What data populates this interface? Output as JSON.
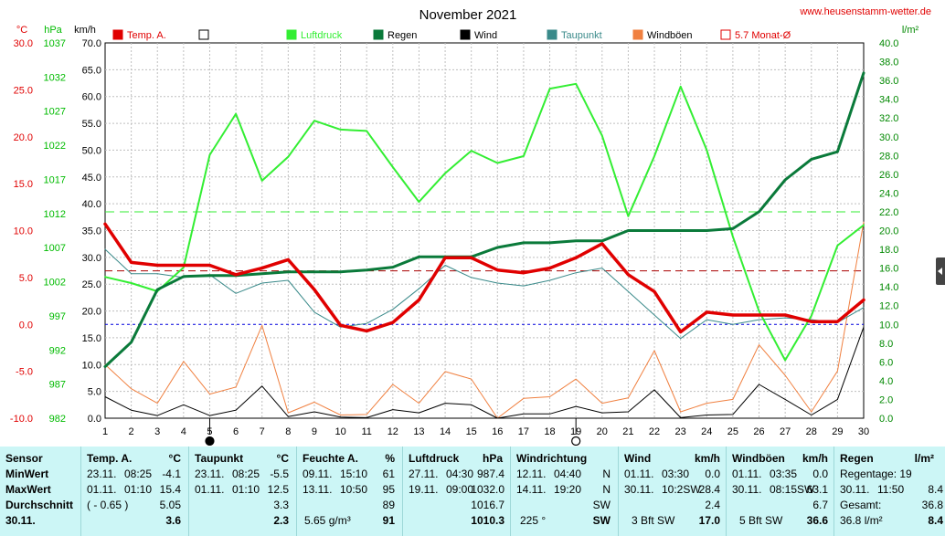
{
  "chart_data": {
    "type": "line",
    "title": "November 2021",
    "website": "www.heusenstamm-wetter.de",
    "axes": {
      "temp": {
        "unit": "°C",
        "min": -10,
        "max": 30,
        "step": 5,
        "color": "#e00000"
      },
      "pressure": {
        "unit": "hPa",
        "min": 982,
        "max": 1037,
        "step": 5,
        "color": "#00bb00"
      },
      "wind": {
        "unit": "km/h",
        "min": 0,
        "max": 70,
        "step": 5,
        "color": "#000000"
      },
      "rain": {
        "unit": "l/m²",
        "min": 0,
        "max": 40,
        "step": 2,
        "color": "#008800"
      }
    },
    "x": [
      1,
      2,
      3,
      4,
      5,
      6,
      7,
      8,
      9,
      10,
      11,
      12,
      13,
      14,
      15,
      16,
      17,
      18,
      19,
      20,
      21,
      22,
      23,
      24,
      25,
      26,
      27,
      28,
      29,
      30
    ],
    "moon_markers": [
      {
        "day": 5,
        "phase": "full"
      },
      {
        "day": 19,
        "phase": "new"
      }
    ],
    "legend": [
      {
        "label": "Temp. A.",
        "color": "#e00000",
        "marker": "filled"
      },
      {
        "label": "",
        "color": "#000000",
        "marker": "open"
      },
      {
        "label": "Luftdruck",
        "color": "#33ee33",
        "marker": "filled"
      },
      {
        "label": "Regen",
        "color": "#0a7a3a",
        "marker": "filled"
      },
      {
        "label": "Wind",
        "color": "#000000",
        "marker": "filled"
      },
      {
        "label": "Taupunkt",
        "color": "#3a8a8a",
        "marker": "filled"
      },
      {
        "label": "Windböen",
        "color": "#f08040",
        "marker": "filled"
      },
      {
        "label": "5.7 Monat-Ø",
        "color": "#e00000",
        "marker": "open"
      }
    ],
    "reference_lines": [
      {
        "axis": "temp",
        "value": 5.7,
        "color": "#aa0000",
        "dash": "8,5"
      },
      {
        "axis": "rain",
        "value": 22.0,
        "color": "#33ee33",
        "dash": "10,6"
      },
      {
        "axis": "temp",
        "value": 0.0,
        "color": "#0000dd",
        "dash": "3,3"
      }
    ],
    "series": [
      {
        "name": "Temp. A.",
        "axis": "temp",
        "color": "#e00000",
        "width": 3.5,
        "values": [
          10.7,
          6.6,
          6.3,
          6.3,
          6.3,
          5.3,
          6.0,
          6.9,
          3.7,
          -0.1,
          -0.7,
          0.2,
          2.6,
          7.1,
          7.1,
          5.8,
          5.5,
          6.0,
          7.1,
          8.6,
          5.3,
          3.5,
          -0.8,
          1.3,
          1.0,
          1.0,
          1.0,
          0.3,
          0.3,
          2.6
        ]
      },
      {
        "name": "Taupunkt",
        "axis": "temp",
        "color": "#3a8a8a",
        "width": 1,
        "values": [
          8.0,
          5.4,
          5.4,
          5.0,
          5.3,
          3.3,
          4.4,
          4.7,
          1.3,
          -0.3,
          0.1,
          1.6,
          3.8,
          6.3,
          5.0,
          4.4,
          4.1,
          4.7,
          5.5,
          6.0,
          3.5,
          1.0,
          -1.5,
          0.5,
          0.0,
          0.5,
          0.7,
          0.5,
          0.2,
          1.8
        ]
      },
      {
        "name": "Luftdruck",
        "axis": "pressure",
        "color": "#33ee33",
        "width": 2,
        "values": [
          1002.7,
          1001.8,
          1000.6,
          1004.1,
          1020.6,
          1026.6,
          1016.8,
          1020.3,
          1025.6,
          1024.3,
          1024.1,
          1018.8,
          1013.7,
          1017.9,
          1021.2,
          1019.4,
          1020.4,
          1030.3,
          1031.0,
          1023.4,
          1011.6,
          1020.4,
          1030.6,
          1021.3,
          1008.6,
          997.7,
          990.5,
          997.0,
          1007.3,
          1010.3
        ]
      },
      {
        "name": "Regen",
        "axis": "rain",
        "color": "#0a7a3a",
        "width": 3,
        "values": [
          5.5,
          8.1,
          13.7,
          15.1,
          15.2,
          15.2,
          15.4,
          15.6,
          15.6,
          15.6,
          15.8,
          16.1,
          17.2,
          17.2,
          17.2,
          18.2,
          18.7,
          18.7,
          18.9,
          18.9,
          20.0,
          20.0,
          20.0,
          20.0,
          20.2,
          22.0,
          25.4,
          27.6,
          28.4,
          36.8
        ]
      },
      {
        "name": "Wind",
        "axis": "wind",
        "color": "#000000",
        "width": 1,
        "values": [
          4.0,
          1.5,
          0.5,
          2.5,
          0.5,
          1.5,
          6.0,
          0.3,
          1.2,
          0.2,
          0.1,
          1.6,
          1.0,
          2.8,
          2.5,
          0.0,
          0.8,
          0.8,
          2.2,
          1.0,
          1.2,
          5.3,
          0.1,
          0.6,
          0.7,
          6.3,
          3.5,
          0.6,
          3.5,
          17.0
        ]
      },
      {
        "name": "Windböen",
        "axis": "wind",
        "color": "#f08040",
        "width": 1,
        "values": [
          10.0,
          5.5,
          2.8,
          10.6,
          4.5,
          5.8,
          17.3,
          1.0,
          3.0,
          0.6,
          0.7,
          6.3,
          2.8,
          8.7,
          7.3,
          0.0,
          3.7,
          4.0,
          7.3,
          2.8,
          3.8,
          12.6,
          1.2,
          2.8,
          3.5,
          13.7,
          8.0,
          1.2,
          8.8,
          36.6
        ]
      }
    ]
  },
  "stats": {
    "sensor": {
      "title": "Sensor",
      "min": "MinWert",
      "max": "MaxWert",
      "avg": "Durchschnitt",
      "date": "30.11."
    },
    "temp": {
      "title": "Temp. A.",
      "unit": "°C",
      "min_date": "23.11.",
      "min_time": "08:25",
      "min_val": "-4.1",
      "max_date": "01.11.",
      "max_time": "01:10",
      "max_val": "15.4",
      "avg_note": "( - 0.65 )",
      "avg_val": "5.05",
      "cur_val": "3.6"
    },
    "taupunkt": {
      "title": "Taupunkt",
      "unit": "°C",
      "min_date": "23.11.",
      "min_time": "08:25",
      "min_val": "-5.5",
      "max_date": "01.11.",
      "max_time": "01:10",
      "max_val": "12.5",
      "avg_val": "3.3",
      "cur_val": "2.3"
    },
    "feuchte": {
      "title": "Feuchte A.",
      "unit": "%",
      "min_date": "09.11.",
      "min_time": "15:10",
      "min_val": "61",
      "max_date": "13.11.",
      "max_time": "10:50",
      "max_val": "95",
      "avg_val": "89",
      "cur_note": "5.65 g/m³",
      "cur_val": "91"
    },
    "luftdruck": {
      "title": "Luftdruck",
      "unit": "hPa",
      "min_date": "27.11.",
      "min_time": "04:30",
      "min_val": "987.4",
      "max_date": "19.11.",
      "max_time": "09:00",
      "max_val": "1032.0",
      "avg_val": "1016.7",
      "cur_val": "1010.3"
    },
    "windrichtung": {
      "title": "Windrichtung",
      "min_date": "12.11.",
      "min_time": "04:40",
      "min_val": "N",
      "max_date": "14.11.",
      "max_time": "19:20",
      "max_val": "N",
      "avg_val": "SW",
      "cur_note": "225 °",
      "cur_val": "SW"
    },
    "wind": {
      "title": "Wind",
      "unit": "km/h",
      "min_date": "01.11.",
      "min_time": "03:30",
      "min_val": "0.0",
      "max_date": "30.11.",
      "max_time": "10:2SW",
      "max_val": "28.4",
      "avg_val": "2.4",
      "cur_note": "3 Bft SW",
      "cur_val": "17.0"
    },
    "windboeen": {
      "title": "Windböen",
      "unit": "km/h",
      "min_date": "01.11.",
      "min_time": "03:35",
      "min_val": "0.0",
      "max_date": "30.11.",
      "max_time": "08:15SW",
      "max_val": "63.1",
      "avg_val": "6.7",
      "cur_note": "5 Bft SW",
      "cur_val": "36.6"
    },
    "regen": {
      "title": "Regen",
      "unit": "l/m²",
      "min_label": "Regentage: 19",
      "min_val": "",
      "max_date": "30.11.",
      "max_time": "11:50",
      "max_val": "8.4",
      "avg_label": "Gesamt:",
      "avg_val": "36.8",
      "cur_note": "36.8 l/m²",
      "cur_val": "8.4"
    }
  }
}
